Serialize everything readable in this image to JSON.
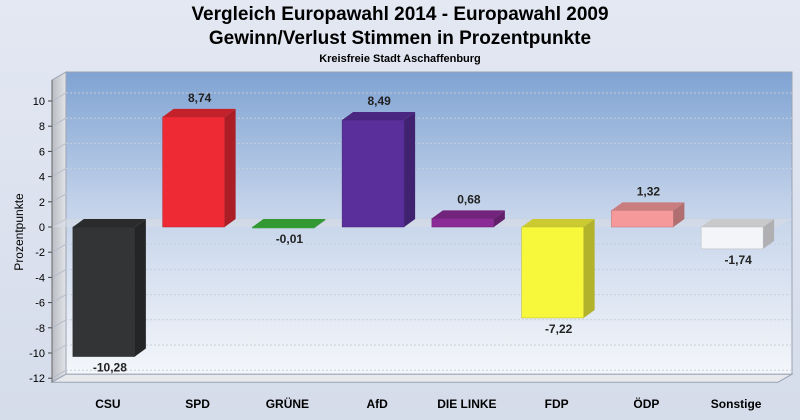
{
  "title_line1": "Vergleich Europawahl 2014 - Europawahl 2009",
  "title_line2": "Gewinn/Verlust Stimmen in Prozentpunkte",
  "subtitle": "Kreisfreie Stadt Aschaffenburg",
  "chart_data": {
    "type": "bar",
    "categories": [
      "CSU",
      "SPD",
      "GRÜNE",
      "AfD",
      "DIE LINKE",
      "FDP",
      "ÖDP",
      "Sonstige"
    ],
    "values": [
      -10.28,
      8.74,
      -0.01,
      8.49,
      0.68,
      -7.22,
      1.32,
      -1.74
    ],
    "value_labels": [
      "-10,28",
      "8,74",
      "-0,01",
      "8,49",
      "0,68",
      "-7,22",
      "1,32",
      "-1,74"
    ],
    "colors": [
      "#323436",
      "#ee2a35",
      "#3dbb3d",
      "#5a2f9c",
      "#8b2b96",
      "#f7f73c",
      "#f5999b",
      "#f4f5f8"
    ],
    "ylabel": "Prozentpunkte",
    "ylim": [
      -12,
      10
    ],
    "yticks": [
      10,
      8,
      6,
      4,
      2,
      0,
      -2,
      -4,
      -6,
      -8,
      -10,
      -12
    ],
    "grid": true,
    "legend": "none"
  }
}
